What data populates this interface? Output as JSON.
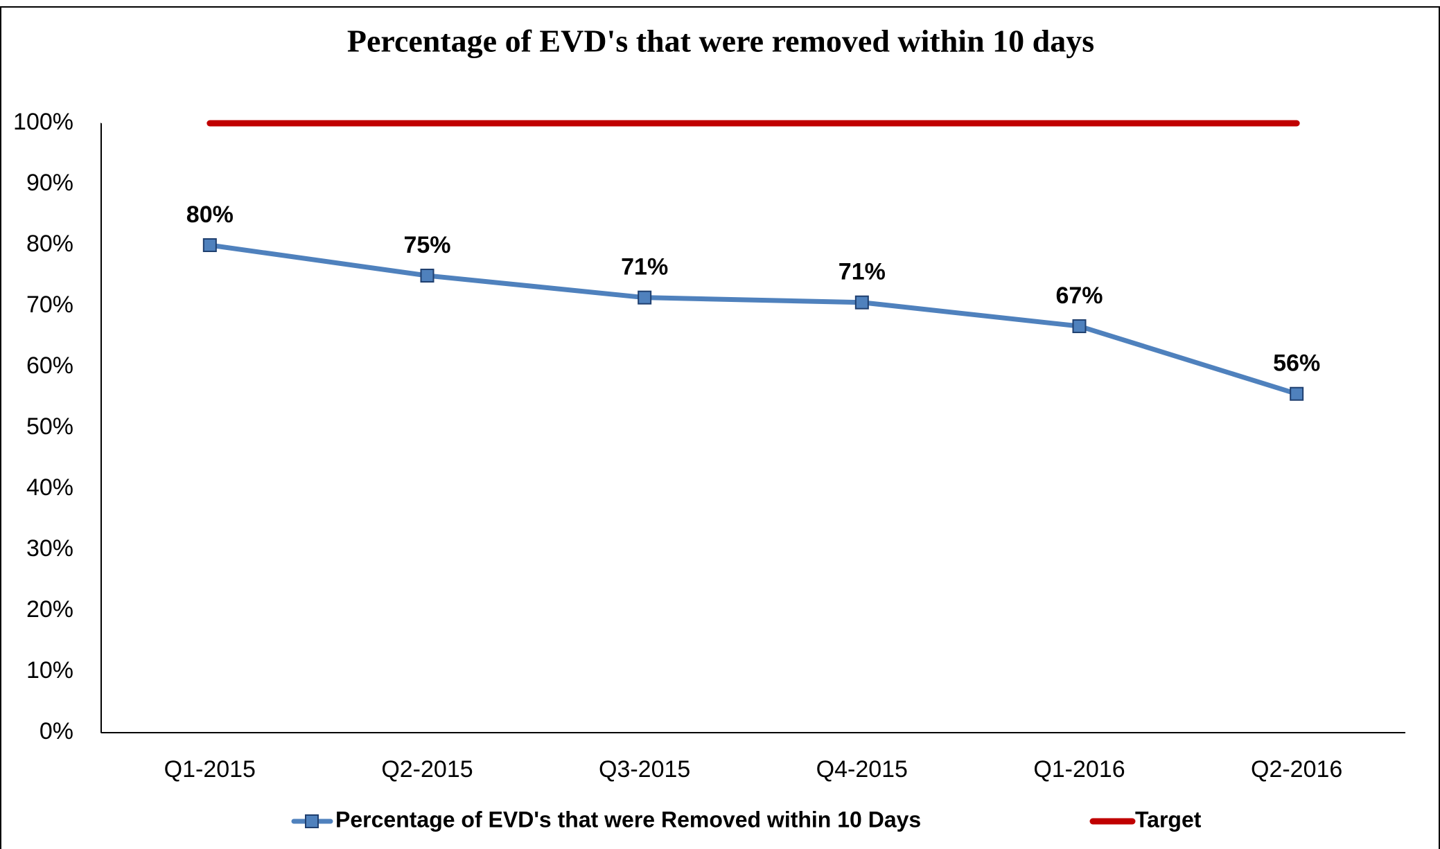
{
  "chart_data": {
    "type": "line",
    "title": "Percentage of EVD's that were removed within 10 days",
    "categories": [
      "Q1-2015",
      "Q2-2015",
      "Q3-2015",
      "Q4-2015",
      "Q1-2016",
      "Q2-2016"
    ],
    "series": [
      {
        "name": "Percentage of EVD's that were Removed within 10 Days",
        "color": "#4f81bd",
        "values": [
          80,
          75,
          71.4,
          70.6,
          66.7,
          55.6
        ],
        "value_labels": [
          "80%",
          "75%",
          "71%",
          "71%",
          "67%",
          "56%"
        ]
      },
      {
        "name": "Target",
        "color": "#c00000",
        "values": [
          100,
          100,
          100,
          100,
          100,
          100
        ]
      }
    ],
    "ylim": [
      0,
      100
    ],
    "yticks": [
      {
        "value": 0,
        "label": "0%"
      },
      {
        "value": 10,
        "label": "10%"
      },
      {
        "value": 20,
        "label": "20%"
      },
      {
        "value": 30,
        "label": "30%"
      },
      {
        "value": 40,
        "label": "40%"
      },
      {
        "value": 50,
        "label": "50%"
      },
      {
        "value": 60,
        "label": "60%"
      },
      {
        "value": 70,
        "label": "70%"
      },
      {
        "value": 80,
        "label": "80%"
      },
      {
        "value": 90,
        "label": "90%"
      },
      {
        "value": 100,
        "label": "100%"
      }
    ],
    "legend": "bottom"
  }
}
